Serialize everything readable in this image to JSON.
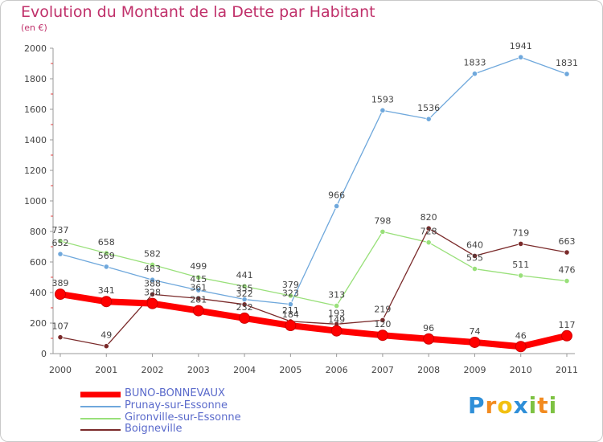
{
  "chart_data": {
    "type": "line",
    "title": "Evolution du Montant de la Dette par Habitant",
    "subtitle": "(en €)",
    "x": [
      "2000",
      "2001",
      "2002",
      "2003",
      "2004",
      "2005",
      "2006",
      "2007",
      "2008",
      "2009",
      "2010",
      "2011"
    ],
    "ylim": [
      0,
      2000
    ],
    "yticks": [
      0,
      200,
      400,
      600,
      800,
      1000,
      1200,
      1400,
      1600,
      1800,
      2000
    ],
    "grid": false,
    "legend_position": "bottom-left",
    "series": [
      {
        "name": "BUNO-BONNEVAUX",
        "color": "#ff0000",
        "values": [
          389,
          341,
          328,
          281,
          232,
          184,
          149,
          120,
          96,
          74,
          46,
          117
        ]
      },
      {
        "name": "Prunay-sur-Essonne",
        "color": "#6fa8dc",
        "values": [
          652,
          569,
          483,
          415,
          355,
          323,
          966,
          1593,
          1536,
          1833,
          1941,
          1831
        ]
      },
      {
        "name": "Gironville-sur-Essonne",
        "color": "#99e07a",
        "values": [
          737,
          658,
          582,
          499,
          441,
          379,
          313,
          798,
          728,
          555,
          511,
          476
        ]
      },
      {
        "name": "Boigneville",
        "color": "#7a2a2a",
        "values": [
          107,
          49,
          388,
          361,
          322,
          211,
          193,
          219,
          820,
          640,
          719,
          663
        ]
      }
    ]
  },
  "logo": {
    "text": "Proxiti",
    "letters": [
      {
        "ch": "P",
        "color": "#2f8fd8"
      },
      {
        "ch": "r",
        "color": "#f28b20"
      },
      {
        "ch": "o",
        "color": "#f2c011"
      },
      {
        "ch": "x",
        "color": "#2f8fd8"
      },
      {
        "ch": "i",
        "color": "#7dc242"
      },
      {
        "ch": "t",
        "color": "#f28b20"
      },
      {
        "ch": "i",
        "color": "#7dc242"
      }
    ]
  }
}
